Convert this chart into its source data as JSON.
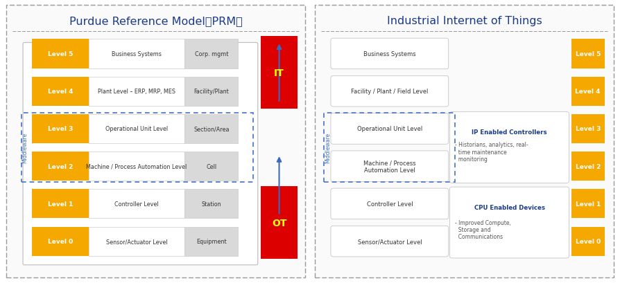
{
  "title_left": "Purdue Reference Model（PRM）",
  "title_right": "Industrial Internet of Things",
  "title_color": "#1a3a8c",
  "title_fontsize": 11.5,
  "orange_color": "#f5a800",
  "it_color": "#dd0000",
  "ot_color": "#dd0000",
  "arrow_color": "#3a6abf",
  "middleware_color": "#4472c4",
  "prm_levels": [
    {
      "label": "Level 5",
      "desc": "Business Systems",
      "right": "Corp. mgmt"
    },
    {
      "label": "Level 4",
      "desc": "Plant Level – ERP, MRP, MES",
      "right": "Facility/Plant"
    },
    {
      "label": "Level 3",
      "desc": "Operational Unit Level",
      "right": "Section/Area"
    },
    {
      "label": "Level 2",
      "desc": "Machine / Process Automation Level",
      "right": "Cell"
    },
    {
      "label": "Level 1",
      "desc": "Controller Level",
      "right": "Station"
    },
    {
      "label": "Level 0",
      "desc": "Sensor/Actuator Level",
      "right": "Equipment"
    }
  ],
  "iiot_levels": [
    {
      "label": "Level 5",
      "desc": "Business Systems"
    },
    {
      "label": "Level 4",
      "desc": "Facility / Plant / Field Level"
    },
    {
      "label": "Level 3",
      "desc": "Operational Unit Level"
    },
    {
      "label": "Level 2",
      "desc": "Machine / Process\nAutomation Level"
    },
    {
      "label": "Level 1",
      "desc": "Controller Level"
    },
    {
      "label": "Level 0",
      "desc": "Sensor/Actuator Level"
    }
  ],
  "iiot_mid_title": "IP Enabled Controllers",
  "iiot_mid_body": "- Historians, analytics, real-\n  time maintenance\n  monitoring",
  "iiot_bot_title": "CPU Enabled Devices",
  "iiot_bot_body": "- Improved Compute,\n  Storage and\n  Communications"
}
